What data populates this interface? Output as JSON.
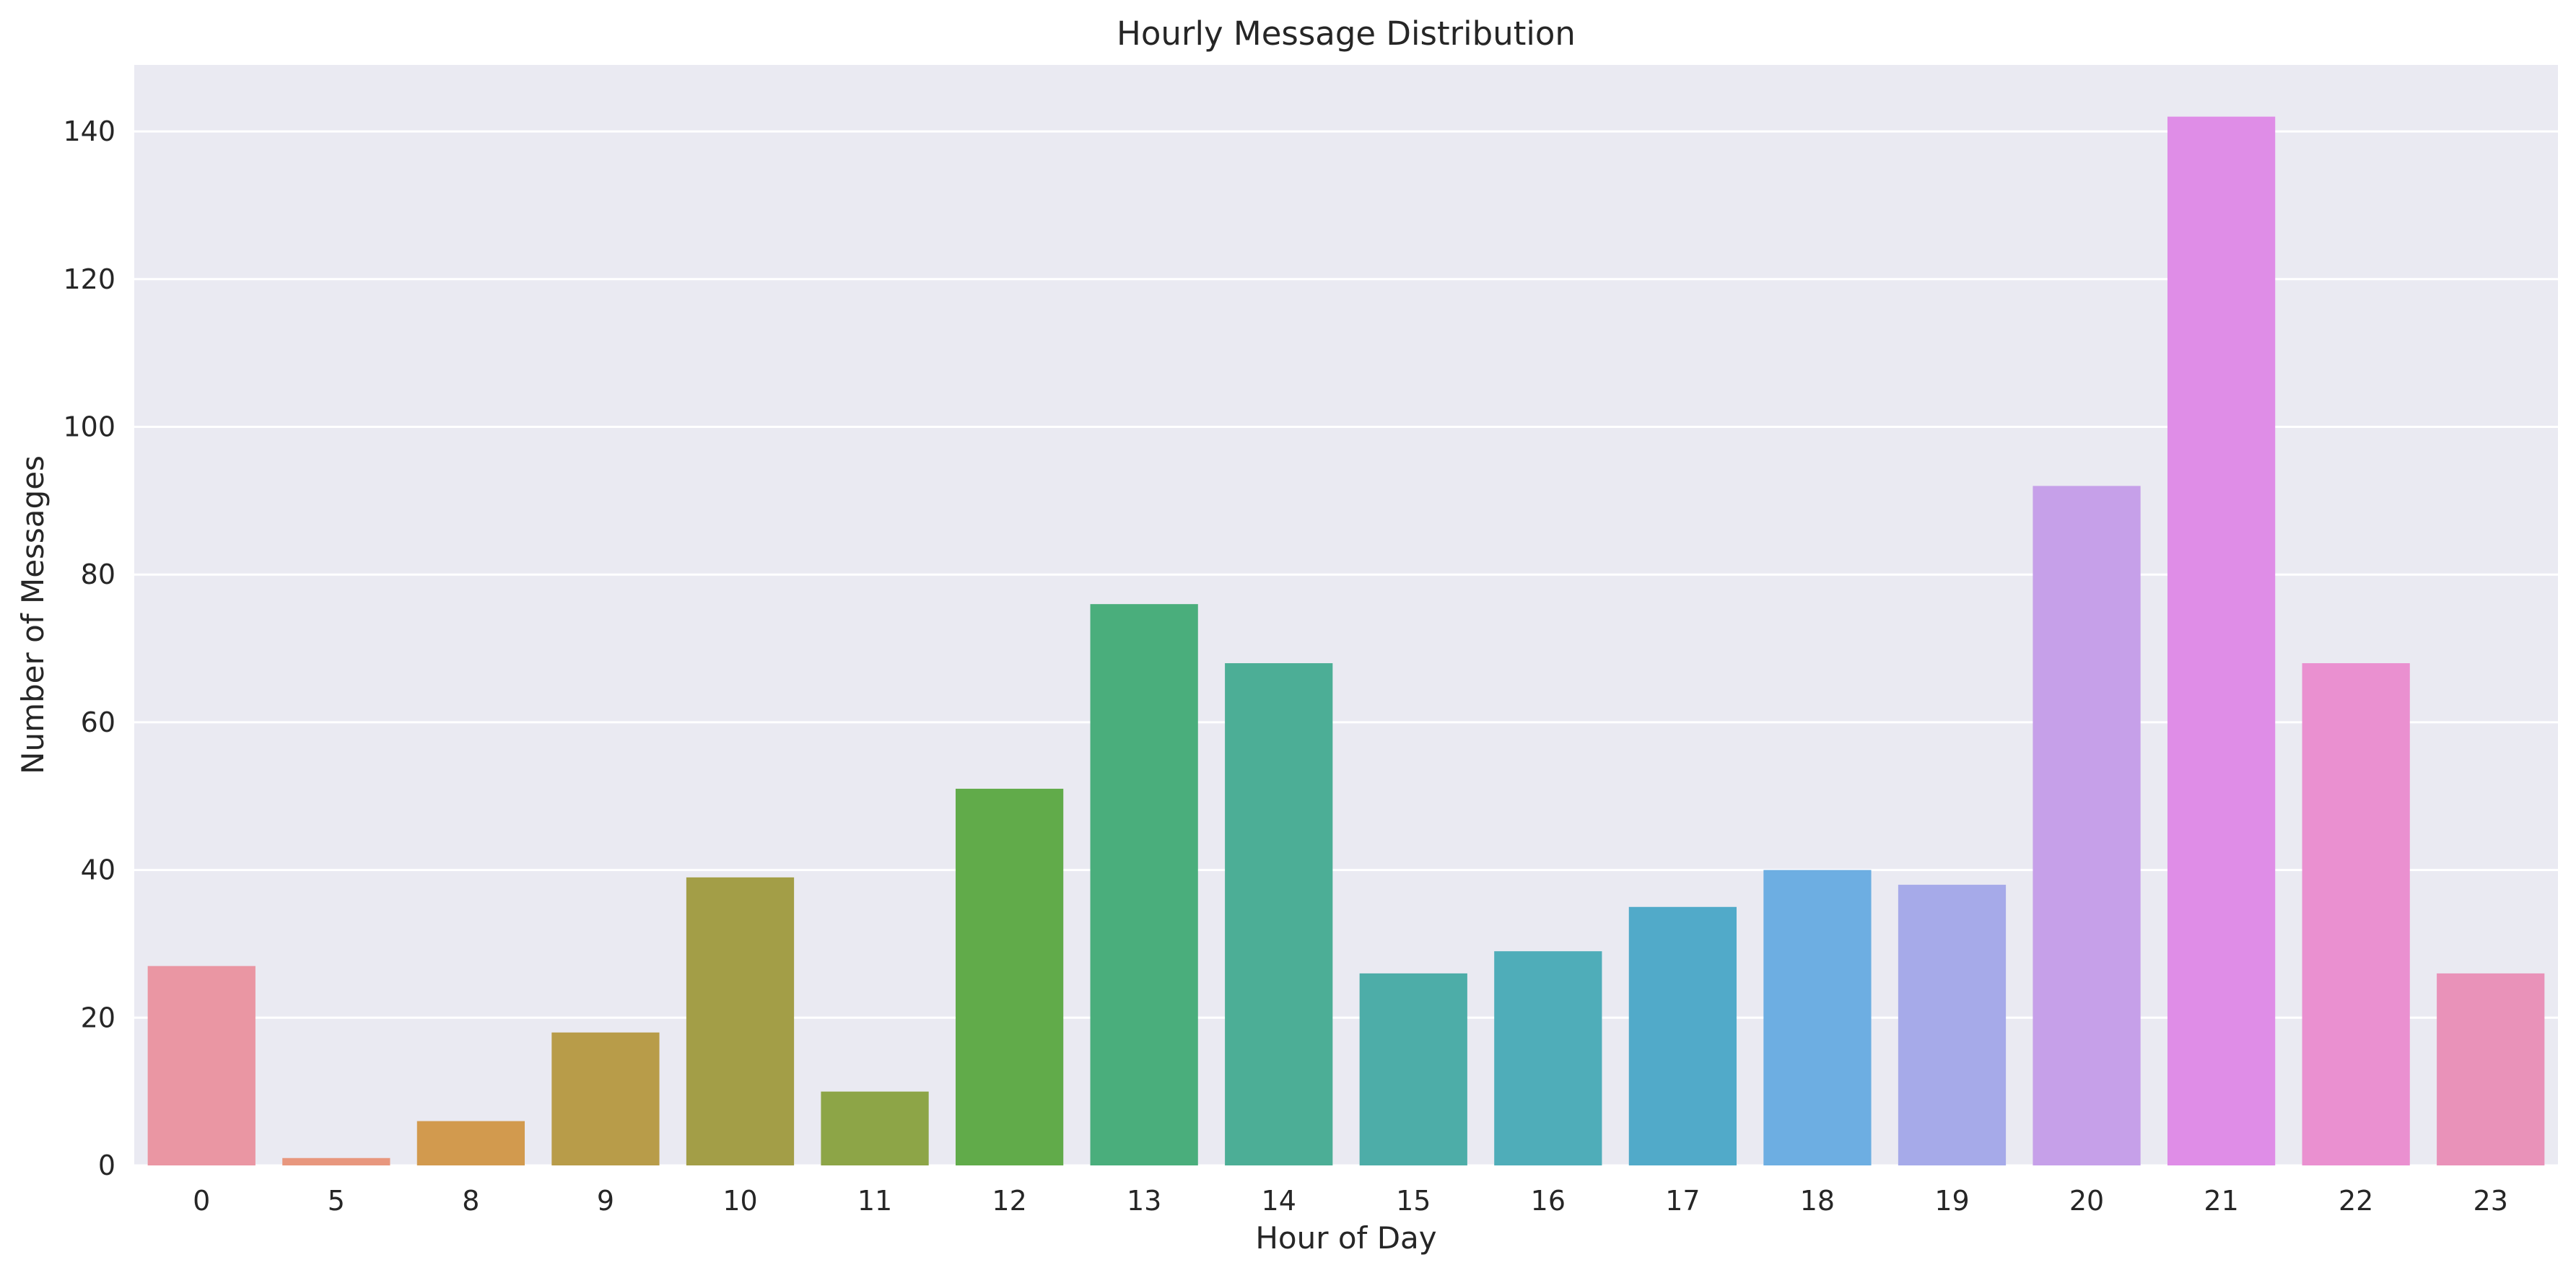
{
  "chart_data": {
    "type": "bar",
    "title": "Hourly Message Distribution",
    "xlabel": "Hour of Day",
    "ylabel": "Number of Messages",
    "categories": [
      "0",
      "5",
      "8",
      "9",
      "10",
      "11",
      "12",
      "13",
      "14",
      "15",
      "16",
      "17",
      "18",
      "19",
      "20",
      "21",
      "22",
      "23"
    ],
    "values": [
      27,
      1,
      6,
      18,
      39,
      10,
      51,
      76,
      68,
      26,
      29,
      35,
      40,
      38,
      92,
      142,
      68,
      26
    ],
    "colors": [
      "#ea96a3",
      "#e8977e",
      "#d29a4e",
      "#b89c49",
      "#a39e47",
      "#8da547",
      "#61ab4a",
      "#4aae7c",
      "#4cae96",
      "#4dada8",
      "#4fadb9",
      "#51aac9",
      "#6daee2",
      "#a6aae9",
      "#c6a0e9",
      "#df8de7",
      "#ea90d0",
      "#e992b9"
    ],
    "ylim": [
      0,
      149
    ],
    "yticks": [
      0,
      20,
      40,
      60,
      80,
      100,
      120,
      140
    ],
    "grid": true,
    "background_color": "#eaeaf2",
    "grid_color": "#ffffff",
    "legend": "none"
  }
}
